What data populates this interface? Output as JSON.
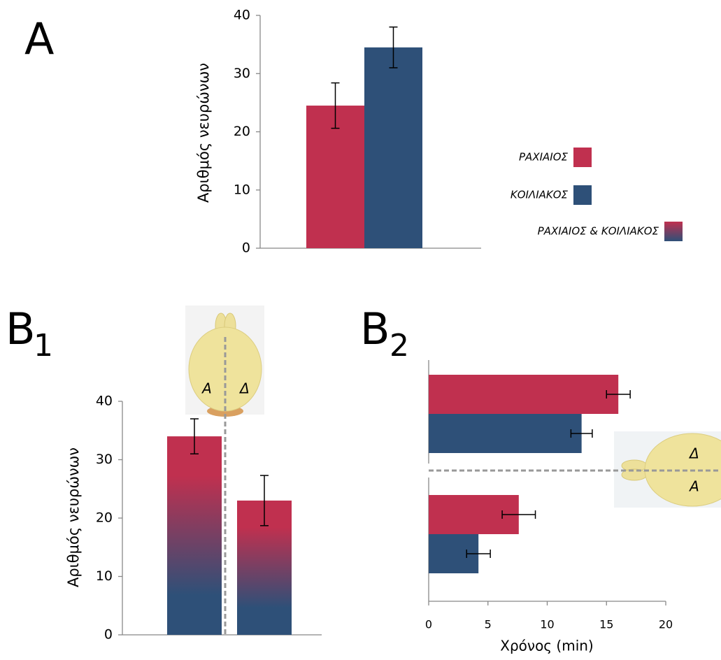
{
  "chart_data": [
    {
      "type": "bar",
      "panel": "A",
      "ylabel": "Αριθμός νευρώνων",
      "categories": [
        null
      ],
      "series": [
        {
          "name": "ΡΑΧΙΑΙΟΣ",
          "color": "#c0304f",
          "values": [
            24.5
          ],
          "errors": [
            3.9
          ]
        },
        {
          "name": "ΚΟΙΛΙΑΚΟΣ",
          "color": "#2e5078",
          "values": [
            34.5
          ],
          "errors": [
            3.5
          ]
        }
      ],
      "legend_extra": {
        "name": "ΡΑΧΙΑΙΟΣ & ΚΟΙΛΙΑΚΟΣ",
        "colors": [
          "#c0304f",
          "#2e5078"
        ]
      },
      "ylim": [
        0,
        40
      ],
      "yticks": [
        0,
        10,
        20,
        30,
        40
      ]
    },
    {
      "type": "bar",
      "panel": "B",
      "panel_sub": "1",
      "ylabel": "Αριθμός νευρώνων",
      "categories": [
        "Α",
        "Δ"
      ],
      "values": [
        34,
        23
      ],
      "errors": [
        3,
        4.3
      ],
      "colors": [
        "#c0304f",
        "#2e5078"
      ],
      "ylim": [
        0,
        40
      ],
      "yticks": [
        0,
        10,
        20,
        30,
        40
      ]
    },
    {
      "type": "bar",
      "orientation": "horizontal",
      "panel": "B",
      "panel_sub": "2",
      "xlabel": "Χρόνος (min)",
      "categories": [
        "Δ",
        "Α"
      ],
      "series": [
        {
          "color": "#c0304f",
          "values": [
            16,
            7.6
          ],
          "errors": [
            1,
            1.4
          ]
        },
        {
          "color": "#2e5078",
          "values": [
            12.9,
            4.2
          ],
          "errors": [
            0.9,
            1
          ]
        }
      ],
      "xlim": [
        0,
        20
      ],
      "xticks": [
        0,
        5,
        10,
        15,
        20
      ]
    }
  ]
}
